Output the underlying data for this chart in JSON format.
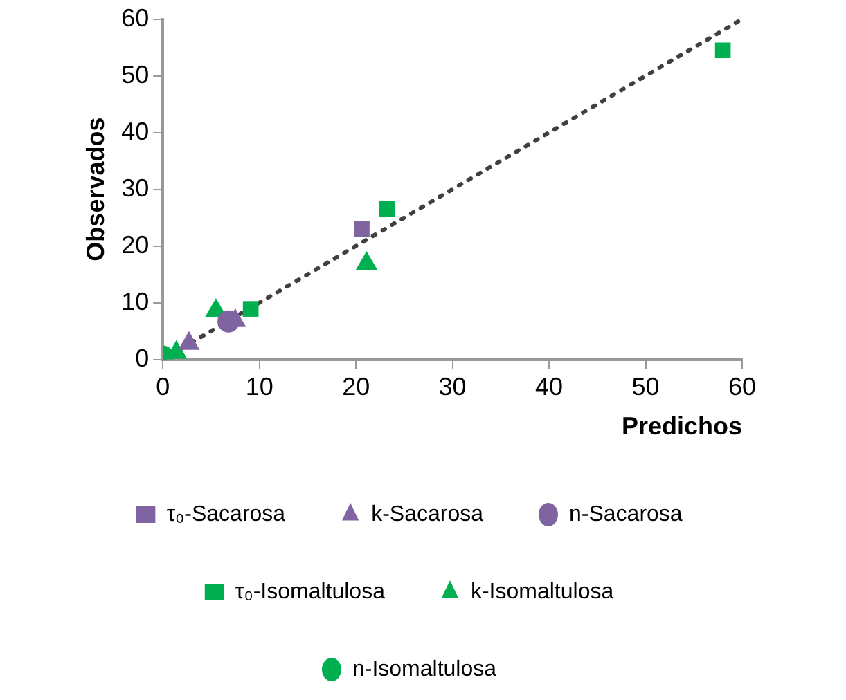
{
  "chart_data": {
    "type": "scatter",
    "xlabel": "Predichos",
    "ylabel": "Observados",
    "xlim": [
      0,
      60
    ],
    "xticks": [
      0,
      10,
      20,
      30,
      40,
      50,
      60
    ],
    "ylim": [
      0,
      60
    ],
    "yticks": [
      0,
      10,
      20,
      30,
      40,
      50,
      60
    ],
    "grid": false,
    "legend": "bottom",
    "series": [
      {
        "name": "τ₀-Sacarosa",
        "color": "#8064a2",
        "marker": "square",
        "x": [
          20.6
        ],
        "values": [
          23.0
        ]
      },
      {
        "name": "k-Sacarosa",
        "color": "#8064a2",
        "marker": "triangle",
        "x": [
          2.7,
          7.5
        ],
        "values": [
          2.8,
          6.8
        ]
      },
      {
        "name": "n-Sacarosa",
        "color": "#8064a2",
        "marker": "circle",
        "x": [
          6.8
        ],
        "values": [
          6.7
        ]
      },
      {
        "name": "τ₀-Isomaltulosa",
        "color": "#00b050",
        "marker": "square",
        "x": [
          9.1,
          23.2,
          58.0
        ],
        "values": [
          8.9,
          26.5,
          54.5
        ]
      },
      {
        "name": "k-Isomaltulosa",
        "color": "#00b050",
        "marker": "triangle",
        "x": [
          1.4,
          5.5,
          21.1
        ],
        "values": [
          1.2,
          8.6,
          16.9
        ]
      },
      {
        "name": "n-Isomaltulosa",
        "color": "#00b050",
        "marker": "circle",
        "x": [
          0
        ],
        "values": [
          0.5
        ]
      },
      {
        "type": "line",
        "color": "#404040",
        "line_style": "dotted",
        "marker": "none",
        "x": [
          0,
          60
        ],
        "values": [
          0,
          60
        ]
      }
    ]
  }
}
